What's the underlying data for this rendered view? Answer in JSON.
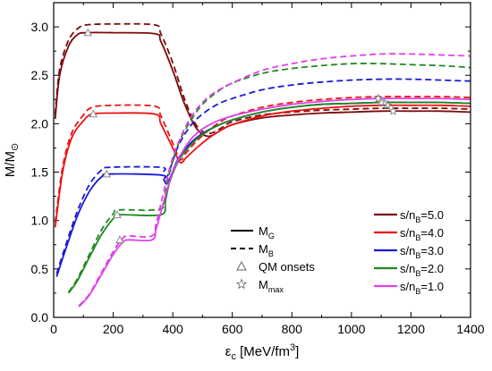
{
  "chart_data": {
    "type": "line",
    "title": "",
    "xlabel": {
      "base": "ε",
      "sub": "c",
      "main": " [MeV/fm",
      "sup": "3",
      "end": "]"
    },
    "ylabel": {
      "base": "M/M",
      "sub": "⊙"
    },
    "xlim": [
      0,
      1400
    ],
    "ylim": [
      0,
      3.25
    ],
    "xticks": [
      0,
      200,
      400,
      600,
      800,
      1000,
      1200,
      1400
    ],
    "yticks": [
      0.0,
      0.5,
      1.0,
      1.5,
      2.0,
      2.5,
      3.0
    ],
    "ytick_labels": [
      "0.0",
      "0.5",
      "1.0",
      "1.5",
      "2.0",
      "2.5",
      "3.0"
    ],
    "grid": false,
    "legend_linestyle": [
      {
        "label_base": "M",
        "label_sub": "G",
        "style": "solid"
      },
      {
        "label_base": "M",
        "label_sub": "B",
        "style": "dashed"
      },
      {
        "label_base": "QM onsets",
        "label_sub": "",
        "style": "triangle"
      },
      {
        "label_base": "M",
        "label_sub": "max",
        "style": "star"
      }
    ],
    "series": [
      {
        "name": "s/n_B=5.0",
        "label_base": "s/n",
        "label_sub": "B",
        "label_end": "=5.0",
        "color": "#7b0a0a",
        "MG": [
          [
            5,
            2.05
          ],
          [
            20,
            2.5
          ],
          [
            50,
            2.8
          ],
          [
            80,
            2.92
          ],
          [
            110,
            2.94
          ],
          [
            200,
            2.94
          ],
          [
            340,
            2.93
          ],
          [
            360,
            2.85
          ],
          [
            400,
            2.55
          ],
          [
            440,
            2.2
          ],
          [
            480,
            1.95
          ],
          [
            520,
            1.87
          ],
          [
            560,
            1.93
          ],
          [
            600,
            1.99
          ],
          [
            700,
            2.06
          ],
          [
            800,
            2.09
          ],
          [
            900,
            2.11
          ],
          [
            1000,
            2.12
          ],
          [
            1100,
            2.13
          ],
          [
            1200,
            2.13
          ],
          [
            1300,
            2.13
          ],
          [
            1400,
            2.12
          ]
        ],
        "MB": [
          [
            5,
            2.1
          ],
          [
            20,
            2.56
          ],
          [
            50,
            2.86
          ],
          [
            80,
            2.98
          ],
          [
            110,
            3.02
          ],
          [
            200,
            3.03
          ],
          [
            340,
            3.02
          ],
          [
            360,
            2.93
          ],
          [
            400,
            2.63
          ],
          [
            440,
            2.25
          ],
          [
            480,
            1.98
          ],
          [
            520,
            1.9
          ],
          [
            560,
            1.95
          ],
          [
            600,
            2.02
          ],
          [
            700,
            2.09
          ],
          [
            800,
            2.12
          ],
          [
            900,
            2.14
          ],
          [
            1000,
            2.15
          ],
          [
            1100,
            2.16
          ],
          [
            1200,
            2.16
          ],
          [
            1300,
            2.16
          ],
          [
            1400,
            2.15
          ]
        ],
        "onset": [
          115,
          2.94
        ],
        "max": [
          1140,
          2.13
        ]
      },
      {
        "name": "s/n_B=4.0",
        "label_base": "s/n",
        "label_sub": "B",
        "label_end": "=4.0",
        "color": "#ee1111",
        "MG": [
          [
            5,
            0.93
          ],
          [
            30,
            1.5
          ],
          [
            60,
            1.85
          ],
          [
            100,
            2.03
          ],
          [
            130,
            2.1
          ],
          [
            200,
            2.11
          ],
          [
            340,
            2.1
          ],
          [
            360,
            2.0
          ],
          [
            400,
            1.75
          ],
          [
            425,
            1.6
          ],
          [
            445,
            1.65
          ],
          [
            480,
            1.75
          ],
          [
            520,
            1.85
          ],
          [
            560,
            1.93
          ],
          [
            600,
            1.99
          ],
          [
            700,
            2.08
          ],
          [
            800,
            2.13
          ],
          [
            900,
            2.16
          ],
          [
            1000,
            2.18
          ],
          [
            1100,
            2.19
          ],
          [
            1200,
            2.19
          ],
          [
            1300,
            2.19
          ],
          [
            1400,
            2.18
          ]
        ],
        "MB": [
          [
            5,
            0.98
          ],
          [
            30,
            1.55
          ],
          [
            60,
            1.9
          ],
          [
            100,
            2.09
          ],
          [
            130,
            2.17
          ],
          [
            200,
            2.19
          ],
          [
            340,
            2.18
          ],
          [
            360,
            2.08
          ],
          [
            400,
            1.8
          ],
          [
            425,
            1.63
          ],
          [
            445,
            1.7
          ],
          [
            480,
            1.82
          ],
          [
            520,
            1.93
          ],
          [
            560,
            2.02
          ],
          [
            600,
            2.08
          ],
          [
            700,
            2.17
          ],
          [
            800,
            2.22
          ],
          [
            900,
            2.25
          ],
          [
            1000,
            2.27
          ],
          [
            1100,
            2.28
          ],
          [
            1200,
            2.28
          ],
          [
            1300,
            2.28
          ],
          [
            1400,
            2.27
          ]
        ],
        "onset": [
          133,
          2.1
        ],
        "max": [
          1120,
          2.19
        ]
      },
      {
        "name": "s/n_B=3.0",
        "label_base": "s/n",
        "label_sub": "B",
        "label_end": "=3.0",
        "color": "#1a1ad8",
        "MG": [
          [
            10,
            0.42
          ],
          [
            40,
            0.7
          ],
          [
            80,
            1.05
          ],
          [
            120,
            1.3
          ],
          [
            160,
            1.45
          ],
          [
            190,
            1.48
          ],
          [
            360,
            1.47
          ],
          [
            370,
            1.42
          ],
          [
            380,
            1.38
          ],
          [
            395,
            1.47
          ],
          [
            420,
            1.65
          ],
          [
            460,
            1.8
          ],
          [
            500,
            1.9
          ],
          [
            550,
            1.98
          ],
          [
            600,
            2.04
          ],
          [
            700,
            2.12
          ],
          [
            800,
            2.17
          ],
          [
            900,
            2.2
          ],
          [
            1000,
            2.21
          ],
          [
            1100,
            2.22
          ],
          [
            1200,
            2.22
          ],
          [
            1300,
            2.22
          ],
          [
            1400,
            2.21
          ]
        ],
        "MB": [
          [
            10,
            0.45
          ],
          [
            40,
            0.74
          ],
          [
            80,
            1.1
          ],
          [
            120,
            1.37
          ],
          [
            160,
            1.52
          ],
          [
            190,
            1.55
          ],
          [
            360,
            1.55
          ],
          [
            370,
            1.5
          ],
          [
            380,
            1.45
          ],
          [
            395,
            1.57
          ],
          [
            420,
            1.78
          ],
          [
            460,
            1.98
          ],
          [
            500,
            2.1
          ],
          [
            550,
            2.2
          ],
          [
            600,
            2.26
          ],
          [
            700,
            2.35
          ],
          [
            800,
            2.4
          ],
          [
            900,
            2.43
          ],
          [
            1000,
            2.45
          ],
          [
            1100,
            2.46
          ],
          [
            1200,
            2.46
          ],
          [
            1300,
            2.45
          ],
          [
            1400,
            2.44
          ]
        ],
        "onset": [
          178,
          1.48
        ],
        "max": [
          1110,
          2.22
        ]
      },
      {
        "name": "s/n_B=2.0",
        "label_base": "s/n",
        "label_sub": "B",
        "label_end": "=2.0",
        "color": "#1f8a1f",
        "MG": [
          [
            50,
            0.25
          ],
          [
            80,
            0.38
          ],
          [
            120,
            0.62
          ],
          [
            160,
            0.85
          ],
          [
            200,
            1.02
          ],
          [
            220,
            1.06
          ],
          [
            360,
            1.06
          ],
          [
            375,
            1.2
          ],
          [
            390,
            1.4
          ],
          [
            420,
            1.62
          ],
          [
            460,
            1.78
          ],
          [
            500,
            1.89
          ],
          [
            550,
            1.98
          ],
          [
            600,
            2.04
          ],
          [
            700,
            2.12
          ],
          [
            800,
            2.17
          ],
          [
            900,
            2.2
          ],
          [
            1000,
            2.21
          ],
          [
            1100,
            2.22
          ],
          [
            1200,
            2.22
          ],
          [
            1300,
            2.22
          ],
          [
            1400,
            2.21
          ]
        ],
        "MB": [
          [
            50,
            0.26
          ],
          [
            80,
            0.4
          ],
          [
            120,
            0.65
          ],
          [
            160,
            0.9
          ],
          [
            200,
            1.07
          ],
          [
            220,
            1.11
          ],
          [
            360,
            1.12
          ],
          [
            375,
            1.28
          ],
          [
            390,
            1.5
          ],
          [
            420,
            1.8
          ],
          [
            460,
            2.03
          ],
          [
            500,
            2.2
          ],
          [
            550,
            2.33
          ],
          [
            600,
            2.42
          ],
          [
            700,
            2.52
          ],
          [
            800,
            2.57
          ],
          [
            900,
            2.6
          ],
          [
            1000,
            2.62
          ],
          [
            1100,
            2.62
          ],
          [
            1200,
            2.61
          ],
          [
            1300,
            2.6
          ],
          [
            1400,
            2.58
          ]
        ],
        "onset": [
          213,
          1.06
        ],
        "max": [
          1100,
          2.22
        ]
      },
      {
        "name": "s/n_B=1.0",
        "label_base": "s/n",
        "label_sub": "B",
        "label_end": "=1.0",
        "color": "#e040e8",
        "MG": [
          [
            85,
            0.11
          ],
          [
            120,
            0.23
          ],
          [
            160,
            0.44
          ],
          [
            200,
            0.65
          ],
          [
            230,
            0.77
          ],
          [
            250,
            0.8
          ],
          [
            330,
            0.8
          ],
          [
            345,
            0.92
          ],
          [
            370,
            1.2
          ],
          [
            400,
            1.5
          ],
          [
            440,
            1.75
          ],
          [
            480,
            1.9
          ],
          [
            530,
            2.0
          ],
          [
            600,
            2.08
          ],
          [
            700,
            2.15
          ],
          [
            800,
            2.2
          ],
          [
            900,
            2.23
          ],
          [
            1000,
            2.25
          ],
          [
            1100,
            2.26
          ],
          [
            1200,
            2.26
          ],
          [
            1300,
            2.26
          ],
          [
            1400,
            2.25
          ]
        ],
        "MB": [
          [
            85,
            0.12
          ],
          [
            120,
            0.24
          ],
          [
            160,
            0.46
          ],
          [
            200,
            0.68
          ],
          [
            230,
            0.81
          ],
          [
            250,
            0.84
          ],
          [
            330,
            0.84
          ],
          [
            345,
            0.98
          ],
          [
            370,
            1.3
          ],
          [
            400,
            1.65
          ],
          [
            440,
            1.95
          ],
          [
            480,
            2.15
          ],
          [
            530,
            2.3
          ],
          [
            600,
            2.42
          ],
          [
            700,
            2.55
          ],
          [
            800,
            2.62
          ],
          [
            900,
            2.67
          ],
          [
            1000,
            2.7
          ],
          [
            1100,
            2.72
          ],
          [
            1200,
            2.72
          ],
          [
            1300,
            2.71
          ],
          [
            1400,
            2.7
          ]
        ],
        "onset": [
          222,
          0.8
        ],
        "max": [
          1090,
          2.26
        ]
      }
    ]
  }
}
